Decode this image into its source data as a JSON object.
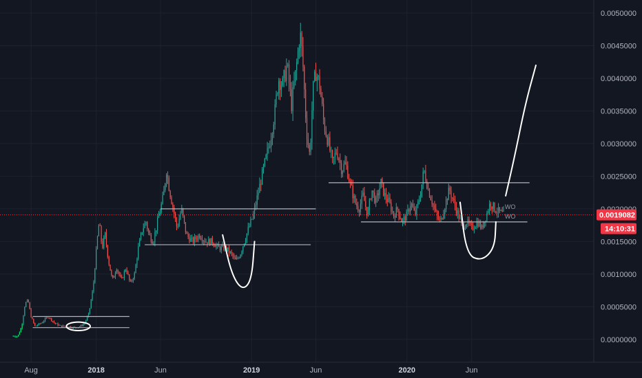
{
  "chart_data": {
    "type": "candlestick",
    "y_axis": {
      "ticks": [
        "0.0050000",
        "0.0045000",
        "0.0040000",
        "0.0035000",
        "0.0030000",
        "0.0025000",
        "0.0020000",
        "0.0015000",
        "0.0010000",
        "0.0005000",
        "0.0000000"
      ],
      "ylim": [
        -0.00035,
        0.0052
      ],
      "position": "right",
      "grid": true
    },
    "x_axis": {
      "ticks": [
        {
          "label": "Aug",
          "date": "2017-08-01",
          "bold": false
        },
        {
          "label": "2018",
          "date": "2018-01-01",
          "bold": true
        },
        {
          "label": "Jun",
          "date": "2018-06-01",
          "bold": false
        },
        {
          "label": "2019",
          "date": "2019-01-01",
          "bold": true
        },
        {
          "label": "Jun",
          "date": "2019-06-01",
          "bold": false
        },
        {
          "label": "2020",
          "date": "2020-01-01",
          "bold": true
        },
        {
          "label": "Jun",
          "date": "2020-06-01",
          "bold": false
        }
      ],
      "xlim": [
        "2017-05-20",
        "2021-03-15"
      ],
      "grid": true
    },
    "current_price": {
      "value": 0.0019082,
      "label": "0.0019082",
      "countdown": "14:10:31"
    },
    "series": [
      {
        "points": [
          [
            "2017-06-20",
            5e-05
          ],
          [
            "2017-07-01",
            5e-05
          ],
          [
            "2017-07-10",
            0.0002
          ],
          [
            "2017-07-18",
            0.00055
          ],
          [
            "2017-07-25",
            0.0006
          ],
          [
            "2017-08-01",
            0.00035
          ],
          [
            "2017-08-10",
            0.0002
          ],
          [
            "2017-08-25",
            0.00025
          ],
          [
            "2017-09-10",
            0.00035
          ],
          [
            "2017-09-25",
            0.00025
          ],
          [
            "2017-10-10",
            0.0002
          ],
          [
            "2017-10-25",
            0.0002
          ],
          [
            "2017-11-10",
            0.00018
          ],
          [
            "2017-11-25",
            0.0002
          ],
          [
            "2017-12-05",
            0.00025
          ],
          [
            "2017-12-15",
            0.0004
          ],
          [
            "2017-12-25",
            0.0008
          ],
          [
            "2018-01-03",
            0.0015
          ],
          [
            "2018-01-08",
            0.0018
          ],
          [
            "2018-01-15",
            0.0014
          ],
          [
            "2018-01-22",
            0.0016
          ],
          [
            "2018-01-30",
            0.0012
          ],
          [
            "2018-02-08",
            0.0009
          ],
          [
            "2018-02-18",
            0.0011
          ],
          [
            "2018-03-01",
            0.0009
          ],
          [
            "2018-03-12",
            0.0011
          ],
          [
            "2018-03-22",
            0.00085
          ],
          [
            "2018-04-01",
            0.001
          ],
          [
            "2018-04-10",
            0.0014
          ],
          [
            "2018-04-20",
            0.0017
          ],
          [
            "2018-04-28",
            0.0018
          ],
          [
            "2018-05-05",
            0.0016
          ],
          [
            "2018-05-15",
            0.0015
          ],
          [
            "2018-05-25",
            0.0018
          ],
          [
            "2018-06-01",
            0.002
          ],
          [
            "2018-06-08",
            0.0022
          ],
          [
            "2018-06-15",
            0.0026
          ],
          [
            "2018-06-22",
            0.0023
          ],
          [
            "2018-07-01",
            0.002
          ],
          [
            "2018-07-10",
            0.0017
          ],
          [
            "2018-07-20",
            0.002
          ],
          [
            "2018-08-01",
            0.0016
          ],
          [
            "2018-08-15",
            0.0015
          ],
          [
            "2018-09-01",
            0.0016
          ],
          [
            "2018-09-15",
            0.0015
          ],
          [
            "2018-10-01",
            0.0015
          ],
          [
            "2018-10-15",
            0.0014
          ],
          [
            "2018-11-01",
            0.0014
          ],
          [
            "2018-11-15",
            0.0013
          ],
          [
            "2018-11-25",
            0.0012
          ],
          [
            "2018-12-05",
            0.0013
          ],
          [
            "2018-12-15",
            0.0015
          ],
          [
            "2018-12-25",
            0.0017
          ],
          [
            "2019-01-05",
            0.0019
          ],
          [
            "2019-01-15",
            0.0022
          ],
          [
            "2019-01-25",
            0.0025
          ],
          [
            "2019-02-05",
            0.0028
          ],
          [
            "2019-02-15",
            0.0031
          ],
          [
            "2019-02-25",
            0.0035
          ],
          [
            "2019-03-05",
            0.004
          ],
          [
            "2019-03-15",
            0.0039
          ],
          [
            "2019-03-25",
            0.0042
          ],
          [
            "2019-04-05",
            0.0036
          ],
          [
            "2019-04-15",
            0.0041
          ],
          [
            "2019-04-25",
            0.0047
          ],
          [
            "2019-05-01",
            0.0043
          ],
          [
            "2019-05-10",
            0.0032
          ],
          [
            "2019-05-18",
            0.0028
          ],
          [
            "2019-05-25",
            0.0038
          ],
          [
            "2019-06-01",
            0.0041
          ],
          [
            "2019-06-10",
            0.0039
          ],
          [
            "2019-06-20",
            0.0033
          ],
          [
            "2019-07-01",
            0.003
          ],
          [
            "2019-07-10",
            0.0027
          ],
          [
            "2019-07-20",
            0.0029
          ],
          [
            "2019-08-01",
            0.0026
          ],
          [
            "2019-08-10",
            0.0027
          ],
          [
            "2019-08-20",
            0.0024
          ],
          [
            "2019-09-01",
            0.0021
          ],
          [
            "2019-09-10",
            0.002
          ],
          [
            "2019-09-20",
            0.0022
          ],
          [
            "2019-10-01",
            0.0019
          ],
          [
            "2019-10-10",
            0.0023
          ],
          [
            "2019-10-20",
            0.0021
          ],
          [
            "2019-11-01",
            0.0024
          ],
          [
            "2019-11-10",
            0.0022
          ],
          [
            "2019-11-20",
            0.0021
          ],
          [
            "2019-12-01",
            0.0019
          ],
          [
            "2019-12-10",
            0.002
          ],
          [
            "2019-12-20",
            0.0018
          ],
          [
            "2020-01-01",
            0.0019
          ],
          [
            "2020-01-10",
            0.0021
          ],
          [
            "2020-01-20",
            0.0019
          ],
          [
            "2020-02-01",
            0.0022
          ],
          [
            "2020-02-10",
            0.0026
          ],
          [
            "2020-02-20",
            0.0023
          ],
          [
            "2020-03-01",
            0.0021
          ],
          [
            "2020-03-10",
            0.0019
          ],
          [
            "2020-03-20",
            0.0018
          ],
          [
            "2020-04-01",
            0.0021
          ],
          [
            "2020-04-10",
            0.0023
          ],
          [
            "2020-04-20",
            0.0021
          ],
          [
            "2020-05-01",
            0.0019
          ],
          [
            "2020-05-10",
            0.0017
          ],
          [
            "2020-05-20",
            0.0018
          ],
          [
            "2020-06-01",
            0.0017
          ],
          [
            "2020-06-15",
            0.0018
          ],
          [
            "2020-06-25",
            0.0017
          ],
          [
            "2020-07-05",
            0.0019
          ],
          [
            "2020-07-15",
            0.0021
          ],
          [
            "2020-07-25",
            0.002
          ],
          [
            "2020-08-05",
            0.00195
          ],
          [
            "2020-08-15",
            0.0019082
          ]
        ]
      }
    ],
    "colors": {
      "background": "#131722",
      "grid": "#1e222d",
      "up": "#26a69a",
      "down": "#ef5350",
      "early_line": "#00e676",
      "drawing": "#ffffff",
      "price_line": "#f23645",
      "level": "#b2b5be"
    },
    "annotations": {
      "horizontal_levels": [
        {
          "from": "2017-08-05",
          "to": "2018-03-20",
          "value": 0.00035
        },
        {
          "from": "2017-08-05",
          "to": "2018-03-20",
          "value": 0.00018
        },
        {
          "from": "2018-06-01",
          "to": "2019-06-01",
          "value": 0.002
        },
        {
          "from": "2018-04-25",
          "to": "2019-05-20",
          "value": 0.00145
        },
        {
          "from": "2019-07-01",
          "to": "2020-10-15",
          "value": 0.0024
        },
        {
          "from": "2019-09-15",
          "to": "2020-10-10",
          "value": 0.0018
        }
      ],
      "text_marks": [
        {
          "date": "2020-08-18",
          "value": 0.002,
          "text": "WO"
        },
        {
          "date": "2020-08-18",
          "value": 0.00185,
          "text": "WO"
        }
      ],
      "curves": [
        {
          "points": [
            [
              "2018-10-25",
              0.0016
            ],
            [
              "2018-11-15",
              0.001
            ],
            [
              "2018-12-10",
              0.00075
            ],
            [
              "2019-01-01",
              0.0009
            ],
            [
              "2019-01-08",
              0.0015
            ]
          ]
        },
        {
          "points": [
            [
              "2020-05-05",
              0.0021
            ],
            [
              "2020-05-20",
              0.0013
            ],
            [
              "2020-06-25",
              0.0012
            ],
            [
              "2020-07-25",
              0.0014
            ],
            [
              "2020-07-28",
              0.0018
            ]
          ]
        },
        {
          "points": [
            [
              "2020-08-20",
              0.0022
            ],
            [
              "2020-09-10",
              0.0028
            ],
            [
              "2020-10-05",
              0.0036
            ],
            [
              "2020-10-30",
              0.0042
            ]
          ]
        }
      ],
      "ellipses": [
        {
          "center": [
            "2017-11-20",
            0.0002
          ],
          "rx_days": 28,
          "ry_value": 6.5e-05
        }
      ]
    }
  }
}
